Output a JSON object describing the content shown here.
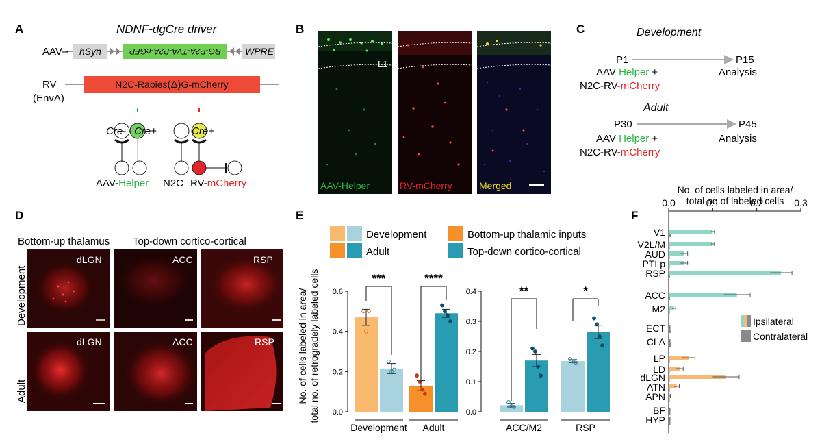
{
  "panel_letters": {
    "a": "A",
    "b": "B",
    "c": "C",
    "d": "D",
    "e": "E",
    "f": "F"
  },
  "panelA": {
    "title": "NDNF-dgCre driver",
    "aav_label": "AAV–",
    "hsyn": "hSyn",
    "construct": "RG-P2A-TVA-P2A-eGFP",
    "wpre": "WPRE",
    "rv_label": "RV",
    "rv_envA": "(EnvA)",
    "rabies_prefix": "N2C-Rabies",
    "rabies_delta": "(Δ)",
    "rabies_suffix": "G-mCherry",
    "cre_minus": "Cre-",
    "cre_plus_1": "Cre+",
    "cre_plus_2": "Cre+",
    "aav_helper_prefix": "AAV-",
    "aav_helper_colored": "Helper",
    "n2c": "N2C",
    "rv_prefix": "RV-",
    "rv_colored": "mCherry"
  },
  "panelB": {
    "l1": "L1",
    "labels": [
      {
        "text": "AAV-Helper",
        "color": "#2bb34b"
      },
      {
        "text": "RV-mCherry",
        "color": "#e0262b"
      },
      {
        "text": "Merged",
        "color": "#f0e020"
      }
    ]
  },
  "panelC": {
    "dev_title": "Development",
    "dev_start": "P1",
    "dev_end": "P15",
    "dev_end_sub": "Analysis",
    "adult_title": "Adult",
    "adult_start": "P30",
    "adult_end": "P45",
    "adult_end_sub": "Analysis",
    "aav_prefix": "AAV ",
    "helper": "Helper",
    "plus": " +",
    "rv_prefix": "N2C-RV-",
    "mcherry": "mCherry"
  },
  "panelD": {
    "col1": "Bottom-up thalamus",
    "col2": "Top-down cortico-cortical",
    "row1": "Development",
    "row2": "Adult",
    "images": [
      {
        "label": "dLGN"
      },
      {
        "label": "ACC"
      },
      {
        "label": "RSP"
      },
      {
        "label": "dLGN"
      },
      {
        "label": "ACC"
      },
      {
        "label": "RSP"
      }
    ]
  },
  "colors": {
    "dev_thal": "#f9b96e",
    "dev_cort": "#a9d2df",
    "ad_thal": "#f5902a",
    "ad_cort": "#2a9cb2",
    "ipsi_cort": "#8fd6c7",
    "ipsi_thal": "#f7b974",
    "contra": "#8a8a8a",
    "green": "#2bb34b",
    "red": "#e0262b"
  },
  "panelE": {
    "legend": [
      {
        "text": "Development",
        "swatches": [
          "#f9b96e",
          "#a9d2df"
        ]
      },
      {
        "text": "Adult",
        "swatches": [
          "#f5902a",
          "#2a9cb2"
        ]
      },
      {
        "text": "Bottom-up thalamic inputs",
        "swatches": [
          "#f5902a"
        ]
      },
      {
        "text": "Top-down cortico-cortical",
        "swatches": [
          "#2a9cb2"
        ]
      }
    ],
    "ylabel_line1": "No. of cells labeled in area/",
    "ylabel_line2": "total no. of retrogradely labeled cells"
  },
  "chart_data": [
    {
      "type": "bar",
      "categories": [
        "Development",
        "Adult"
      ],
      "ylim": [
        0,
        0.6
      ],
      "yticks": [
        "0.0",
        "0.2",
        "0.4",
        "0.6"
      ],
      "bars": [
        {
          "group": "Development",
          "value": 0.47,
          "err": 0.04,
          "color": "#f9b96e",
          "points": [
            0.5,
            0.4,
            0.5
          ]
        },
        {
          "group": "Development",
          "value": 0.215,
          "err": 0.025,
          "color": "#a9d2df",
          "points": [
            0.25,
            0.2,
            0.21
          ]
        },
        {
          "group": "Adult",
          "value": 0.13,
          "err": 0.025,
          "color": "#f5902a",
          "points": [
            0.18,
            0.15,
            0.11,
            0.09
          ]
        },
        {
          "group": "Adult",
          "value": 0.49,
          "err": 0.02,
          "color": "#2a9cb2",
          "points": [
            0.53,
            0.5,
            0.48,
            0.45
          ]
        }
      ],
      "significance": [
        "***",
        "****"
      ]
    },
    {
      "type": "bar",
      "categories": [
        "ACC/M2",
        "RSP"
      ],
      "ylim": [
        0,
        0.4
      ],
      "yticks": [
        "0.0",
        "0.1",
        "0.2",
        "0.3",
        "0.4"
      ],
      "bars": [
        {
          "group": "ACC/M2",
          "value": 0.022,
          "err": 0.006,
          "color": "#a9d2df",
          "points": [
            0.032,
            0.018,
            0.016
          ]
        },
        {
          "group": "ACC/M2",
          "value": 0.17,
          "err": 0.02,
          "color": "#2a9cb2",
          "points": [
            0.21,
            0.2,
            0.15,
            0.12
          ]
        },
        {
          "group": "RSP",
          "value": 0.168,
          "err": 0.005,
          "color": "#a9d2df",
          "points": [
            0.175,
            0.167,
            0.163
          ]
        },
        {
          "group": "RSP",
          "value": 0.265,
          "err": 0.022,
          "color": "#2a9cb2",
          "points": [
            0.31,
            0.29,
            0.25,
            0.22
          ]
        }
      ],
      "significance": [
        "**",
        "*"
      ]
    },
    {
      "type": "bar",
      "orientation": "horizontal",
      "title_line1": "No. of cells labeled in area/",
      "title_line2": "total no.of labeled cells",
      "xlim": [
        0,
        0.3
      ],
      "xticks": [
        "0.0",
        "0.1",
        "0.2",
        "0.3"
      ],
      "legend": [
        {
          "text": "Ipsilateral",
          "swatches": [
            "#8fd6c7",
            "#f7b974",
            "#8a8a8a"
          ]
        },
        {
          "text": "Contralateral",
          "swatches": [
            "#8a8a8a"
          ]
        }
      ],
      "categories": [
        "V1",
        "V2L/M",
        "AUD",
        "PTLp",
        "RSP",
        "ACC",
        "M2",
        "ECT",
        "CLA",
        "LP",
        "LD",
        "dLGN",
        "ATN",
        "APN",
        "BF",
        "HYP"
      ],
      "ipsilateral": [
        0.1,
        0.1,
        0.035,
        0.035,
        0.255,
        0.155,
        0.012,
        0.002,
        0.002,
        0.045,
        0.025,
        0.13,
        0.018,
        0.003,
        0.002,
        0.002
      ],
      "ipsilateral_err": [
        0.004,
        0.004,
        0.008,
        0.008,
        0.025,
        0.03,
        0.004,
        0.001,
        0.001,
        0.015,
        0.008,
        0.03,
        0.006,
        0.001,
        0.001,
        0.001
      ],
      "contralateral": [
        0.006,
        0.002,
        0.002,
        0.002,
        0.003,
        0.003,
        0.002,
        0.006,
        0.006,
        0.002,
        0.002,
        0.002,
        0.002,
        0.002,
        0.004,
        0.004
      ],
      "group_colors": [
        "#8fd6c7",
        "#8fd6c7",
        "#8fd6c7",
        "#8fd6c7",
        "#8fd6c7",
        "#8fd6c7",
        "#8fd6c7",
        "#8fd6c7",
        "#8fd6c7",
        "#f7b974",
        "#f7b974",
        "#f7b974",
        "#f7b974",
        "#f7b974",
        "#8a8a8a",
        "#8a8a8a"
      ]
    }
  ]
}
